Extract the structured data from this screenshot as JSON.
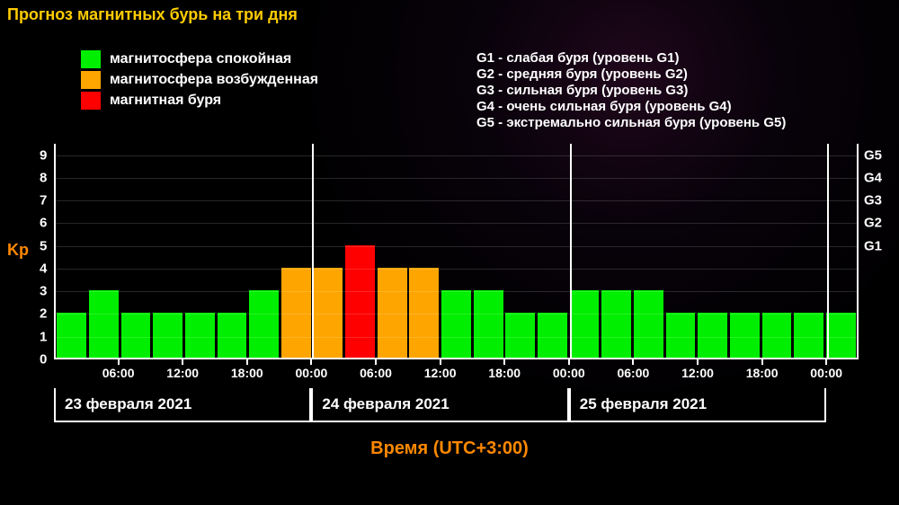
{
  "title": {
    "text": "Прогноз магнитных бурь на три дня",
    "color": "#ffcc00"
  },
  "legend_left": [
    {
      "color": "#00ef00",
      "label": "магнитосфера спокойная"
    },
    {
      "color": "#ffa500",
      "label": "магнитосфера возбужденная"
    },
    {
      "color": "#ff0000",
      "label": "магнитная буря"
    }
  ],
  "legend_right": [
    "G1 - слабая буря (уровень G1)",
    "G2 - средняя буря (уровень G2)",
    "G3 - сильная буря (уровень G3)",
    "G4 - очень сильная буря (уровень G4)",
    "G5 - экстремально сильная буря (уровень G5)"
  ],
  "chart": {
    "type": "bar",
    "y_axis_title": "Kp",
    "y_axis_title_color": "#ff8800",
    "x_axis_title": "Время (UTC+3:00)",
    "x_axis_title_color": "#ff8800",
    "y_ticks": [
      0,
      1,
      2,
      3,
      4,
      5,
      6,
      7,
      8,
      9
    ],
    "y_max": 9.5,
    "right_labels": [
      {
        "value": 5,
        "text": "G1"
      },
      {
        "value": 6,
        "text": "G2"
      },
      {
        "value": 7,
        "text": "G3"
      },
      {
        "value": 8,
        "text": "G4"
      },
      {
        "value": 9,
        "text": "G5"
      }
    ],
    "colors": {
      "calm": "#00ef00",
      "excited": "#ffa500",
      "storm": "#ff0000"
    },
    "bars": [
      {
        "v": 2,
        "c": "calm"
      },
      {
        "v": 3,
        "c": "calm"
      },
      {
        "v": 2,
        "c": "calm"
      },
      {
        "v": 2,
        "c": "calm"
      },
      {
        "v": 2,
        "c": "calm"
      },
      {
        "v": 2,
        "c": "calm"
      },
      {
        "v": 3,
        "c": "calm"
      },
      {
        "v": 4,
        "c": "excited"
      },
      {
        "v": 4,
        "c": "excited"
      },
      {
        "v": 5,
        "c": "storm"
      },
      {
        "v": 4,
        "c": "excited"
      },
      {
        "v": 4,
        "c": "excited"
      },
      {
        "v": 3,
        "c": "calm"
      },
      {
        "v": 3,
        "c": "calm"
      },
      {
        "v": 2,
        "c": "calm"
      },
      {
        "v": 2,
        "c": "calm"
      },
      {
        "v": 3,
        "c": "calm"
      },
      {
        "v": 3,
        "c": "calm"
      },
      {
        "v": 3,
        "c": "calm"
      },
      {
        "v": 2,
        "c": "calm"
      },
      {
        "v": 2,
        "c": "calm"
      },
      {
        "v": 2,
        "c": "calm"
      },
      {
        "v": 2,
        "c": "calm"
      },
      {
        "v": 2,
        "c": "calm"
      },
      {
        "v": 2,
        "c": "calm"
      }
    ],
    "n_slots": 25,
    "day_separators_at": [
      8,
      16,
      24
    ],
    "x_time_ticks": [
      {
        "slot": 1,
        "label": "06:00"
      },
      {
        "slot": 3,
        "label": "12:00"
      },
      {
        "slot": 5,
        "label": "18:00"
      },
      {
        "slot": 7,
        "label": "00:00"
      },
      {
        "slot": 9,
        "label": "06:00"
      },
      {
        "slot": 11,
        "label": "12:00"
      },
      {
        "slot": 13,
        "label": "18:00"
      },
      {
        "slot": 15,
        "label": "00:00"
      },
      {
        "slot": 17,
        "label": "06:00"
      },
      {
        "slot": 19,
        "label": "12:00"
      },
      {
        "slot": 21,
        "label": "18:00"
      },
      {
        "slot": 23,
        "label": "00:00"
      }
    ],
    "day_boxes": [
      {
        "from_slot": 0,
        "to_slot": 8,
        "label": "23 февраля 2021"
      },
      {
        "from_slot": 8,
        "to_slot": 16,
        "label": "24 февраля 2021"
      },
      {
        "from_slot": 16,
        "to_slot": 24,
        "label": "25 февраля 2021"
      }
    ]
  }
}
